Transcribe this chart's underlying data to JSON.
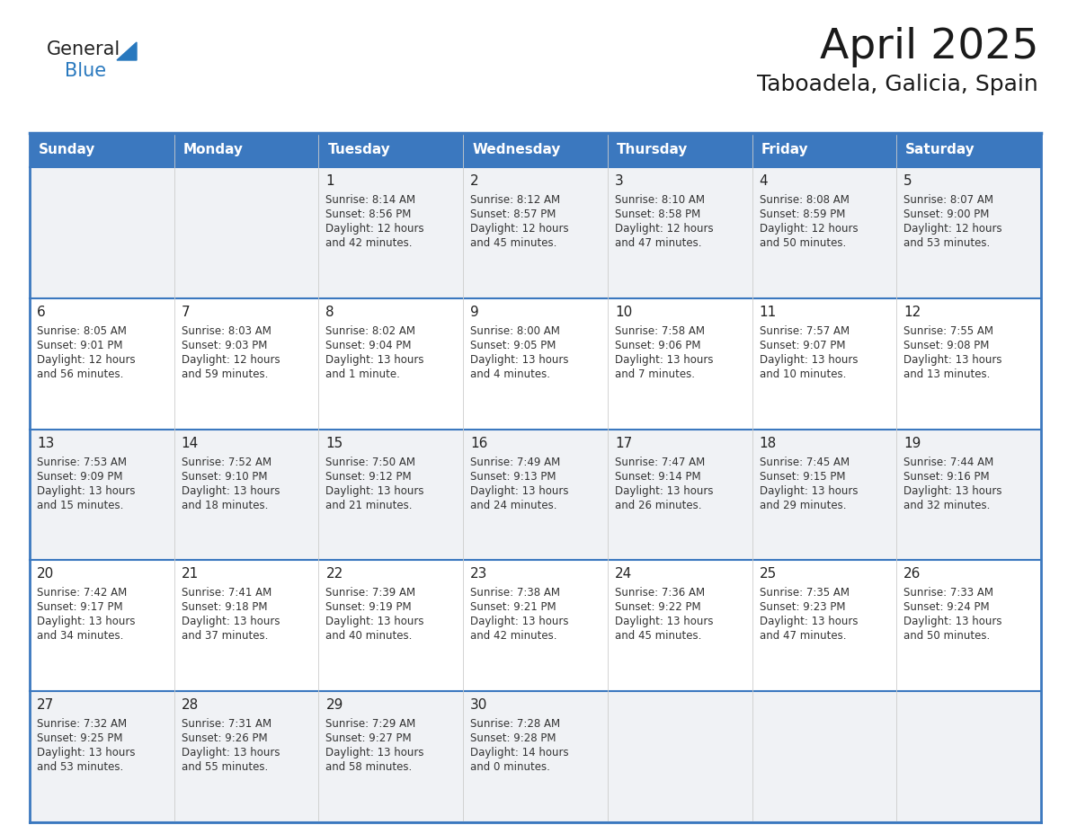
{
  "title": "April 2025",
  "subtitle": "Taboadela, Galicia, Spain",
  "header_bg": "#3b78bf",
  "header_text_color": "#ffffff",
  "cell_bg_odd": "#f0f2f5",
  "cell_bg_even": "#ffffff",
  "border_color_outer": "#3b78bf",
  "border_color_inner": "#3b78bf",
  "text_color": "#333333",
  "day_number_color": "#222222",
  "days_of_week": [
    "Sunday",
    "Monday",
    "Tuesday",
    "Wednesday",
    "Thursday",
    "Friday",
    "Saturday"
  ],
  "weeks": [
    [
      {
        "day": "",
        "lines": []
      },
      {
        "day": "",
        "lines": []
      },
      {
        "day": "1",
        "lines": [
          "Sunrise: 8:14 AM",
          "Sunset: 8:56 PM",
          "Daylight: 12 hours",
          "and 42 minutes."
        ]
      },
      {
        "day": "2",
        "lines": [
          "Sunrise: 8:12 AM",
          "Sunset: 8:57 PM",
          "Daylight: 12 hours",
          "and 45 minutes."
        ]
      },
      {
        "day": "3",
        "lines": [
          "Sunrise: 8:10 AM",
          "Sunset: 8:58 PM",
          "Daylight: 12 hours",
          "and 47 minutes."
        ]
      },
      {
        "day": "4",
        "lines": [
          "Sunrise: 8:08 AM",
          "Sunset: 8:59 PM",
          "Daylight: 12 hours",
          "and 50 minutes."
        ]
      },
      {
        "day": "5",
        "lines": [
          "Sunrise: 8:07 AM",
          "Sunset: 9:00 PM",
          "Daylight: 12 hours",
          "and 53 minutes."
        ]
      }
    ],
    [
      {
        "day": "6",
        "lines": [
          "Sunrise: 8:05 AM",
          "Sunset: 9:01 PM",
          "Daylight: 12 hours",
          "and 56 minutes."
        ]
      },
      {
        "day": "7",
        "lines": [
          "Sunrise: 8:03 AM",
          "Sunset: 9:03 PM",
          "Daylight: 12 hours",
          "and 59 minutes."
        ]
      },
      {
        "day": "8",
        "lines": [
          "Sunrise: 8:02 AM",
          "Sunset: 9:04 PM",
          "Daylight: 13 hours",
          "and 1 minute."
        ]
      },
      {
        "day": "9",
        "lines": [
          "Sunrise: 8:00 AM",
          "Sunset: 9:05 PM",
          "Daylight: 13 hours",
          "and 4 minutes."
        ]
      },
      {
        "day": "10",
        "lines": [
          "Sunrise: 7:58 AM",
          "Sunset: 9:06 PM",
          "Daylight: 13 hours",
          "and 7 minutes."
        ]
      },
      {
        "day": "11",
        "lines": [
          "Sunrise: 7:57 AM",
          "Sunset: 9:07 PM",
          "Daylight: 13 hours",
          "and 10 minutes."
        ]
      },
      {
        "day": "12",
        "lines": [
          "Sunrise: 7:55 AM",
          "Sunset: 9:08 PM",
          "Daylight: 13 hours",
          "and 13 minutes."
        ]
      }
    ],
    [
      {
        "day": "13",
        "lines": [
          "Sunrise: 7:53 AM",
          "Sunset: 9:09 PM",
          "Daylight: 13 hours",
          "and 15 minutes."
        ]
      },
      {
        "day": "14",
        "lines": [
          "Sunrise: 7:52 AM",
          "Sunset: 9:10 PM",
          "Daylight: 13 hours",
          "and 18 minutes."
        ]
      },
      {
        "day": "15",
        "lines": [
          "Sunrise: 7:50 AM",
          "Sunset: 9:12 PM",
          "Daylight: 13 hours",
          "and 21 minutes."
        ]
      },
      {
        "day": "16",
        "lines": [
          "Sunrise: 7:49 AM",
          "Sunset: 9:13 PM",
          "Daylight: 13 hours",
          "and 24 minutes."
        ]
      },
      {
        "day": "17",
        "lines": [
          "Sunrise: 7:47 AM",
          "Sunset: 9:14 PM",
          "Daylight: 13 hours",
          "and 26 minutes."
        ]
      },
      {
        "day": "18",
        "lines": [
          "Sunrise: 7:45 AM",
          "Sunset: 9:15 PM",
          "Daylight: 13 hours",
          "and 29 minutes."
        ]
      },
      {
        "day": "19",
        "lines": [
          "Sunrise: 7:44 AM",
          "Sunset: 9:16 PM",
          "Daylight: 13 hours",
          "and 32 minutes."
        ]
      }
    ],
    [
      {
        "day": "20",
        "lines": [
          "Sunrise: 7:42 AM",
          "Sunset: 9:17 PM",
          "Daylight: 13 hours",
          "and 34 minutes."
        ]
      },
      {
        "day": "21",
        "lines": [
          "Sunrise: 7:41 AM",
          "Sunset: 9:18 PM",
          "Daylight: 13 hours",
          "and 37 minutes."
        ]
      },
      {
        "day": "22",
        "lines": [
          "Sunrise: 7:39 AM",
          "Sunset: 9:19 PM",
          "Daylight: 13 hours",
          "and 40 minutes."
        ]
      },
      {
        "day": "23",
        "lines": [
          "Sunrise: 7:38 AM",
          "Sunset: 9:21 PM",
          "Daylight: 13 hours",
          "and 42 minutes."
        ]
      },
      {
        "day": "24",
        "lines": [
          "Sunrise: 7:36 AM",
          "Sunset: 9:22 PM",
          "Daylight: 13 hours",
          "and 45 minutes."
        ]
      },
      {
        "day": "25",
        "lines": [
          "Sunrise: 7:35 AM",
          "Sunset: 9:23 PM",
          "Daylight: 13 hours",
          "and 47 minutes."
        ]
      },
      {
        "day": "26",
        "lines": [
          "Sunrise: 7:33 AM",
          "Sunset: 9:24 PM",
          "Daylight: 13 hours",
          "and 50 minutes."
        ]
      }
    ],
    [
      {
        "day": "27",
        "lines": [
          "Sunrise: 7:32 AM",
          "Sunset: 9:25 PM",
          "Daylight: 13 hours",
          "and 53 minutes."
        ]
      },
      {
        "day": "28",
        "lines": [
          "Sunrise: 7:31 AM",
          "Sunset: 9:26 PM",
          "Daylight: 13 hours",
          "and 55 minutes."
        ]
      },
      {
        "day": "29",
        "lines": [
          "Sunrise: 7:29 AM",
          "Sunset: 9:27 PM",
          "Daylight: 13 hours",
          "and 58 minutes."
        ]
      },
      {
        "day": "30",
        "lines": [
          "Sunrise: 7:28 AM",
          "Sunset: 9:28 PM",
          "Daylight: 14 hours",
          "and 0 minutes."
        ]
      },
      {
        "day": "",
        "lines": []
      },
      {
        "day": "",
        "lines": []
      },
      {
        "day": "",
        "lines": []
      }
    ]
  ],
  "logo_triangle_color": "#2878be",
  "header_fontsize": 11,
  "day_number_fontsize": 11,
  "info_fontsize": 8.5,
  "title_fontsize": 34,
  "subtitle_fontsize": 18
}
